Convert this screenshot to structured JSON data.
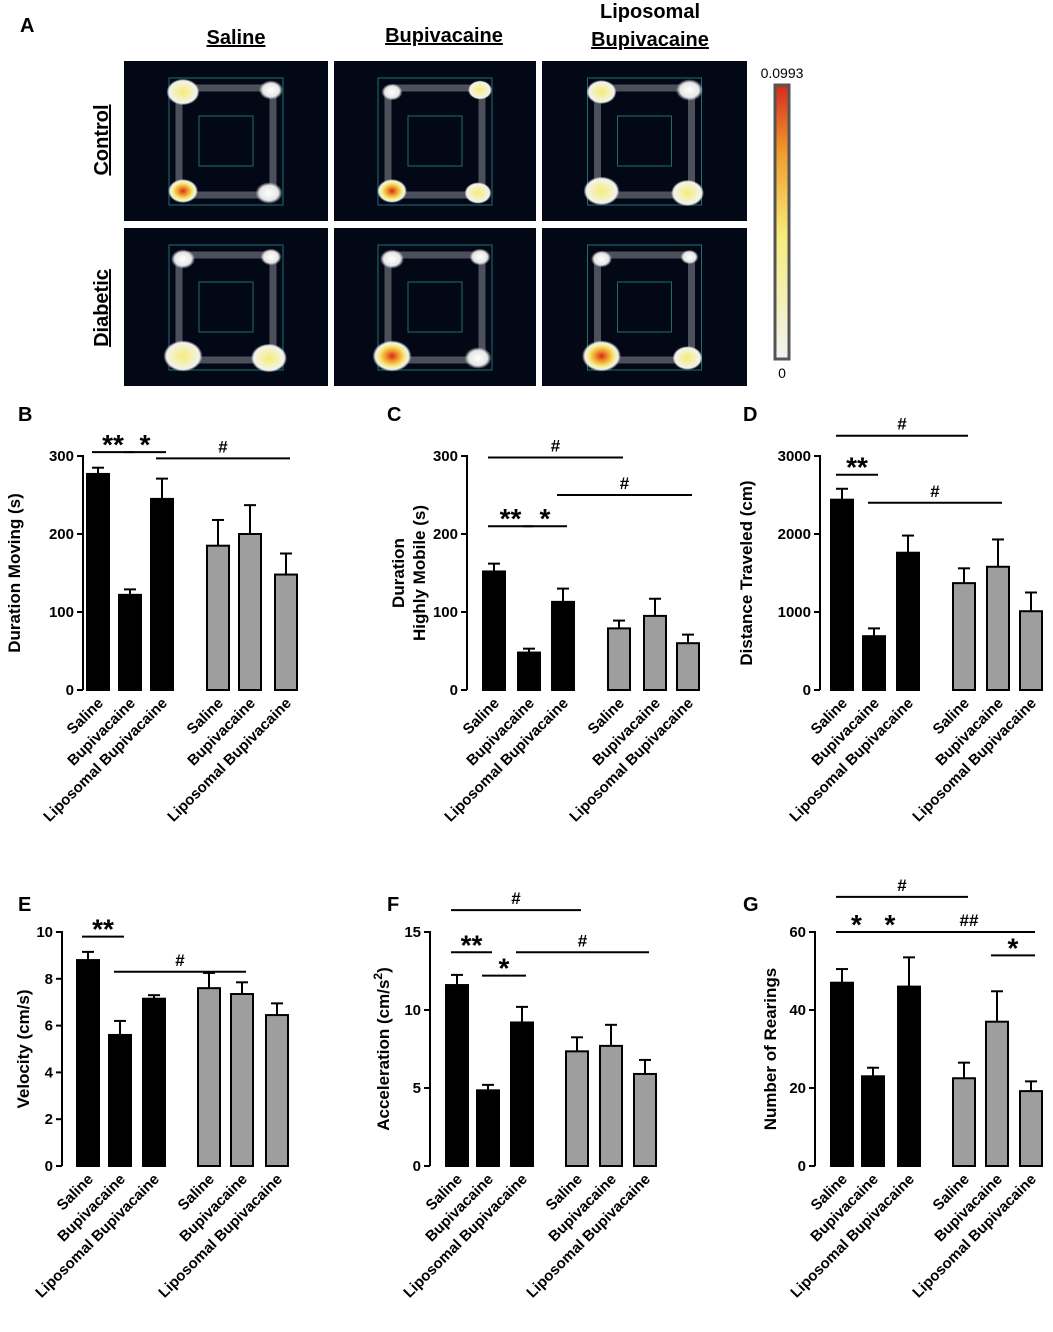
{
  "figure": {
    "panel_a": {
      "letter": "A",
      "column_titles": [
        "Saline",
        "Bupivacaine",
        "Liposomal Bupivacaine"
      ],
      "row_titles": [
        "Control",
        "Diabetic"
      ],
      "colorbar": {
        "max_label": "0.0993",
        "min_label": "0",
        "colors": [
          "#f2f2f2",
          "#f5ec7a",
          "#f29d2c",
          "#d62a1e"
        ]
      },
      "heatmap_background": "#030817",
      "arena_line_color": "#1f6c6c"
    },
    "colors": {
      "control_bar": "#000000",
      "diabetic_bar": "#9e9e9e"
    }
  },
  "chart_data": [
    {
      "panel": "B",
      "type": "bar",
      "categories": [
        "Saline",
        "Bupivacaine",
        "Liposomal Bupivacaine",
        "Saline",
        "Bupivacaine",
        "Liposomal Bupivacaine"
      ],
      "values": [
        277,
        122,
        245,
        185,
        200,
        148
      ],
      "errors": [
        8,
        7,
        26,
        33,
        37,
        27
      ],
      "ylabel": "Duration Moving (s)",
      "ylim": [
        0,
        300
      ],
      "yticks": [
        0,
        100,
        200,
        300
      ],
      "significance": [
        {
          "label": "**",
          "from": 0,
          "to": 1,
          "level": 305
        },
        {
          "label": "*",
          "from": 1,
          "to": 2,
          "level": 305
        },
        {
          "label": "#",
          "from": 2,
          "to": 5,
          "level": 297
        }
      ]
    },
    {
      "panel": "C",
      "type": "bar",
      "categories": [
        "Saline",
        "Bupivacaine",
        "Liposomal Bupivacaine",
        "Saline",
        "Bupivacaine",
        "Liposomal Bupivacaine"
      ],
      "values": [
        152,
        48,
        113,
        79,
        95,
        60
      ],
      "errors": [
        10,
        5,
        17,
        10,
        22,
        11
      ],
      "ylabel": "Duration Highly Mobile (s)",
      "ylabel_lines": [
        "Duration",
        "Highly Mobile (s)"
      ],
      "ylim": [
        0,
        300
      ],
      "yticks": [
        0,
        100,
        200,
        300
      ],
      "significance": [
        {
          "label": "#",
          "from": 0,
          "to": 3,
          "level": 298
        },
        {
          "label": "#",
          "from": 2,
          "to": 5,
          "level": 250
        },
        {
          "label": "**",
          "from": 0,
          "to": 1,
          "level": 210
        },
        {
          "label": "*",
          "from": 1,
          "to": 2,
          "level": 210
        }
      ]
    },
    {
      "panel": "D",
      "type": "bar",
      "categories": [
        "Saline",
        "Bupivacaine",
        "Liposomal Bupivacaine",
        "Saline",
        "Bupivacaine",
        "Liposomal Bupivacaine"
      ],
      "values": [
        2440,
        690,
        1760,
        1370,
        1580,
        1010
      ],
      "errors": [
        140,
        100,
        220,
        190,
        350,
        240
      ],
      "ylabel": "Distance Traveled (cm)",
      "ylim": [
        0,
        3000
      ],
      "yticks": [
        0,
        1000,
        2000,
        3000
      ],
      "significance": [
        {
          "label": "#",
          "from": 0,
          "to": 3,
          "level": 3260
        },
        {
          "label": "**",
          "from": 0,
          "to": 1,
          "level": 2760
        },
        {
          "label": "#",
          "from": 1,
          "to": 4,
          "level": 2400
        }
      ]
    },
    {
      "panel": "E",
      "type": "bar",
      "categories": [
        "Saline",
        "Bupivacaine",
        "Liposomal Bupivacaine",
        "Saline",
        "Bupivacaine",
        "Liposomal Bupivacaine"
      ],
      "values": [
        8.8,
        5.6,
        7.15,
        7.6,
        7.35,
        6.45
      ],
      "errors": [
        0.35,
        0.6,
        0.15,
        0.65,
        0.5,
        0.5
      ],
      "ylabel": "Velocity (cm/s)",
      "ylim": [
        0,
        10
      ],
      "yticks": [
        0,
        2,
        4,
        6,
        8,
        10
      ],
      "significance": [
        {
          "label": "**",
          "from": 0,
          "to": 1,
          "level": 9.8
        },
        {
          "label": "#",
          "from": 1,
          "to": 4,
          "level": 8.3
        }
      ]
    },
    {
      "panel": "F",
      "type": "bar",
      "categories": [
        "Saline",
        "Bupivacaine",
        "Liposomal Bupivacaine",
        "Saline",
        "Bupivacaine",
        "Liposomal Bupivacaine"
      ],
      "values": [
        11.6,
        4.85,
        9.2,
        7.35,
        7.7,
        5.9
      ],
      "errors": [
        0.65,
        0.35,
        1.0,
        0.9,
        1.35,
        0.9
      ],
      "ylabel": "Acceleration (cm/s²)",
      "ylabel_main": "Acceleration (cm/s",
      "ylabel_sup": "2",
      "ylabel_end": ")",
      "ylim": [
        0,
        15
      ],
      "yticks": [
        0,
        5,
        10,
        15
      ],
      "significance": [
        {
          "label": "#",
          "from": 0,
          "to": 3,
          "level": 16.4
        },
        {
          "label": "**",
          "from": 0,
          "to": 1,
          "level": 13.7
        },
        {
          "label": "*",
          "from": 1,
          "to": 2,
          "level": 12.2
        },
        {
          "label": "#",
          "from": 2,
          "to": 5,
          "level": 13.7
        }
      ]
    },
    {
      "panel": "G",
      "type": "bar",
      "categories": [
        "Saline",
        "Bupivacaine",
        "Liposomal Bupivacaine",
        "Saline",
        "Bupivacaine",
        "Liposomal Bupivacaine"
      ],
      "values": [
        47,
        23,
        46,
        22.5,
        37,
        19.2
      ],
      "errors": [
        3.5,
        2.2,
        7.5,
        4.0,
        7.8,
        2.5
      ],
      "ylabel": "Number of Rearings",
      "ylim": [
        0,
        60
      ],
      "yticks": [
        0,
        20,
        40,
        60
      ],
      "significance": [
        {
          "label": "#",
          "from": 0,
          "to": 3,
          "level": 69
        },
        {
          "label": "*",
          "from": 0,
          "to": 1,
          "level": 60
        },
        {
          "label": "*",
          "from": 1,
          "to": 2,
          "level": 60
        },
        {
          "label": "##",
          "from": 2,
          "to": 5,
          "level": 60
        },
        {
          "label": "*",
          "from": 4,
          "to": 5,
          "level": 54
        }
      ]
    }
  ]
}
